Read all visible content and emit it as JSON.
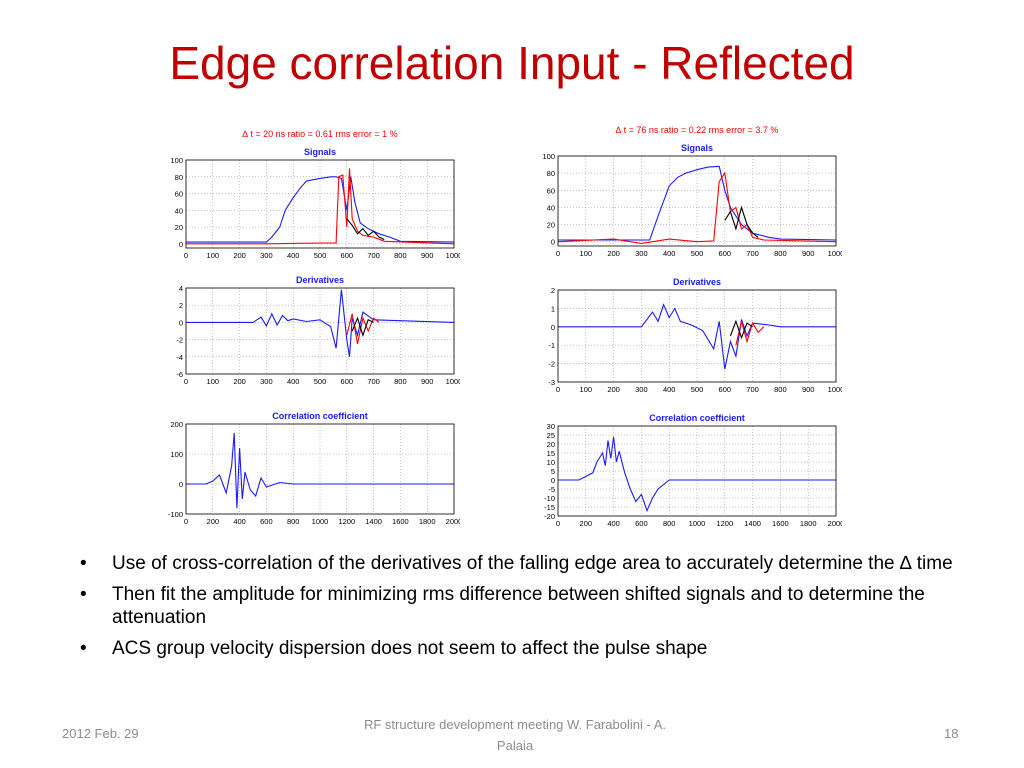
{
  "slide": {
    "title": "Edge correlation Input - Reflected",
    "bullets": [
      "Use of cross-correlation of the derivatives of the falling edge area to accurately determine the ∆ time",
      "Then fit the amplitude for minimizing rms difference between shifted signals and to determine the attenuation",
      "ACS  group velocity dispersion does not seem to affect the pulse shape"
    ],
    "bullet_symbol": "•",
    "footer": {
      "date": "2012 Feb. 29",
      "center": "RF structure development meeting  W. Farabolini - A. Palaia",
      "page": "18"
    }
  },
  "chart_data": [
    {
      "type": "line",
      "header": "∆ t = 20 ns   ratio = 0.61    rms error = 1 %",
      "title": "Signals",
      "xlim": [
        0,
        1000
      ],
      "ylim": [
        -5,
        100
      ],
      "xticks": [
        0,
        100,
        200,
        300,
        400,
        500,
        600,
        700,
        800,
        900,
        1000
      ],
      "yticks": [
        0,
        20,
        40,
        60,
        80,
        100
      ],
      "grid": true,
      "series": [
        {
          "color": "#1a1aff",
          "x": [
            0,
            300,
            320,
            350,
            370,
            400,
            430,
            450,
            500,
            540,
            560,
            580,
            600,
            615,
            630,
            650,
            680,
            720,
            760,
            800,
            1000
          ],
          "y": [
            2,
            2,
            8,
            20,
            40,
            55,
            68,
            75,
            78,
            80,
            80,
            78,
            40,
            80,
            50,
            25,
            18,
            12,
            8,
            3,
            2
          ]
        },
        {
          "color": "#ff0000",
          "x": [
            0,
            300,
            500,
            560,
            570,
            585,
            600,
            610,
            620,
            640,
            660,
            700,
            740,
            1000
          ],
          "y": [
            0,
            0,
            1,
            1,
            80,
            82,
            20,
            90,
            30,
            15,
            10,
            8,
            3,
            0
          ]
        },
        {
          "color": "#000000",
          "x": [
            600,
            620,
            640,
            660,
            680,
            700,
            720,
            740
          ],
          "y": [
            30,
            22,
            12,
            18,
            10,
            15,
            8,
            5
          ]
        }
      ]
    },
    {
      "type": "line",
      "title": "Derivatives",
      "xlim": [
        0,
        1000
      ],
      "ylim": [
        -6,
        4
      ],
      "xticks": [
        0,
        100,
        200,
        300,
        400,
        500,
        600,
        700,
        800,
        900,
        1000
      ],
      "yticks": [
        -6,
        -4,
        -2,
        0,
        2,
        4
      ],
      "grid": true,
      "series": [
        {
          "color": "#1a1aff",
          "x": [
            0,
            250,
            280,
            300,
            320,
            340,
            360,
            380,
            400,
            450,
            500,
            540,
            560,
            580,
            600,
            610,
            620,
            640,
            660,
            700,
            1000
          ],
          "y": [
            0,
            0,
            0.6,
            -0.4,
            1.0,
            -0.3,
            0.8,
            0.2,
            0.4,
            0.1,
            0.3,
            -0.5,
            -3,
            3.8,
            -2,
            -4,
            0.5,
            -1.5,
            1.2,
            0.3,
            0
          ]
        },
        {
          "color": "#ff0000",
          "x": [
            600,
            620,
            640,
            660,
            680,
            700,
            720
          ],
          "y": [
            -1.5,
            1,
            -2.5,
            0.5,
            -1,
            0.5,
            0
          ]
        },
        {
          "color": "#000000",
          "x": [
            620,
            640,
            660,
            680,
            700
          ],
          "y": [
            -1,
            0.5,
            -1.5,
            0.3,
            0
          ]
        }
      ]
    },
    {
      "type": "line",
      "title": "Correlation coefficient",
      "xlim": [
        0,
        2000
      ],
      "ylim": [
        -100,
        200
      ],
      "xticks": [
        0,
        200,
        400,
        600,
        800,
        1000,
        1200,
        1400,
        1600,
        1800,
        2000
      ],
      "yticks": [
        -100,
        0,
        100,
        200
      ],
      "grid": true,
      "series": [
        {
          "color": "#1a1aff",
          "x": [
            0,
            150,
            200,
            250,
            300,
            340,
            360,
            380,
            400,
            420,
            440,
            480,
            520,
            560,
            600,
            700,
            800,
            2000
          ],
          "y": [
            0,
            0,
            10,
            30,
            -30,
            60,
            170,
            -80,
            120,
            -50,
            40,
            -20,
            -40,
            20,
            -10,
            5,
            0,
            0
          ]
        }
      ]
    },
    {
      "type": "line",
      "header": "∆ t = 76 ns   ratio = 0.22    rms error = 3.7 %",
      "title": "Signals",
      "xlim": [
        0,
        1000
      ],
      "ylim": [
        -5,
        100
      ],
      "xticks": [
        0,
        100,
        200,
        300,
        400,
        500,
        600,
        700,
        800,
        900,
        1000
      ],
      "yticks": [
        0,
        20,
        40,
        60,
        80,
        100
      ],
      "grid": true,
      "series": [
        {
          "color": "#1a1aff",
          "x": [
            0,
            330,
            360,
            400,
            430,
            460,
            500,
            540,
            580,
            600,
            620,
            640,
            660,
            700,
            760,
            800,
            1000
          ],
          "y": [
            2,
            2,
            30,
            65,
            75,
            80,
            84,
            87,
            88,
            60,
            40,
            30,
            20,
            10,
            5,
            3,
            2
          ]
        },
        {
          "color": "#ff0000",
          "x": [
            0,
            200,
            300,
            400,
            500,
            560,
            580,
            600,
            620,
            640,
            660,
            680,
            700,
            740,
            1000
          ],
          "y": [
            0,
            3,
            -2,
            3,
            0,
            1,
            70,
            80,
            35,
            40,
            15,
            20,
            5,
            2,
            0
          ]
        },
        {
          "color": "#000000",
          "x": [
            600,
            620,
            640,
            660,
            680,
            700,
            720
          ],
          "y": [
            25,
            35,
            15,
            40,
            20,
            10,
            5
          ]
        }
      ]
    },
    {
      "type": "line",
      "title": "Derivatives",
      "xlim": [
        0,
        1000
      ],
      "ylim": [
        -3,
        2
      ],
      "xticks": [
        0,
        100,
        200,
        300,
        400,
        500,
        600,
        700,
        800,
        900,
        1000
      ],
      "yticks": [
        -3,
        -2,
        -1,
        0,
        1,
        2
      ],
      "grid": true,
      "series": [
        {
          "color": "#1a1aff",
          "x": [
            0,
            300,
            340,
            360,
            380,
            400,
            420,
            440,
            480,
            520,
            560,
            580,
            600,
            620,
            640,
            660,
            680,
            700,
            760,
            800,
            1000
          ],
          "y": [
            0,
            0,
            0.8,
            0.3,
            1.2,
            0.5,
            1.0,
            0.3,
            0.1,
            -0.2,
            -1.2,
            0.3,
            -2.3,
            -0.8,
            -1.6,
            0.4,
            -0.5,
            0.2,
            0.1,
            0,
            0
          ]
        },
        {
          "color": "#ff0000",
          "x": [
            640,
            660,
            680,
            700,
            720,
            740
          ],
          "y": [
            -1,
            0.3,
            -0.8,
            0.2,
            -0.3,
            0
          ]
        },
        {
          "color": "#000000",
          "x": [
            620,
            640,
            660,
            680,
            700
          ],
          "y": [
            -0.5,
            0.3,
            -0.6,
            0.2,
            0
          ]
        }
      ]
    },
    {
      "type": "line",
      "title": "Correlation coefficient",
      "xlim": [
        0,
        2000
      ],
      "ylim": [
        -20,
        30
      ],
      "xticks": [
        0,
        200,
        400,
        600,
        800,
        1000,
        1200,
        1400,
        1600,
        1800,
        2000
      ],
      "yticks": [
        -20,
        -15,
        -10,
        -5,
        0,
        5,
        10,
        15,
        20,
        25,
        30
      ],
      "grid": true,
      "series": [
        {
          "color": "#1a1aff",
          "x": [
            0,
            150,
            200,
            250,
            280,
            320,
            340,
            360,
            380,
            400,
            420,
            440,
            480,
            520,
            560,
            600,
            640,
            680,
            720,
            800,
            2000
          ],
          "y": [
            0,
            0,
            2,
            4,
            10,
            15,
            8,
            22,
            12,
            24,
            10,
            16,
            4,
            -5,
            -12,
            -8,
            -17,
            -10,
            -5,
            0,
            0
          ]
        }
      ]
    }
  ]
}
